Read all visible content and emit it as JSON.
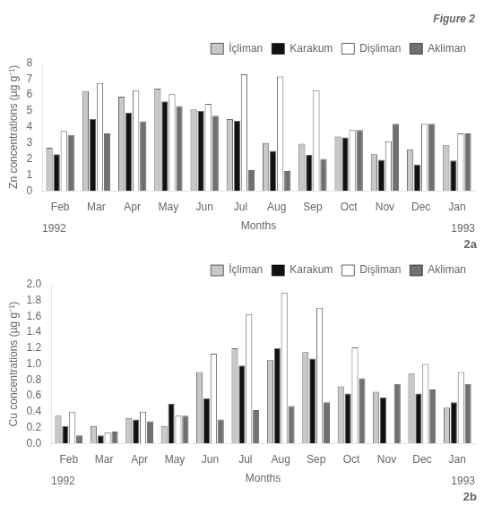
{
  "chart_data": [
    {
      "type": "bar",
      "title": "Figure 2",
      "categories": [
        "Feb",
        "Mar",
        "Apr",
        "May",
        "Jun",
        "Jul",
        "Aug",
        "Sep",
        "Oct",
        "Nov",
        "Dec",
        "Jan"
      ],
      "series": [
        {
          "name": "İçliman",
          "color": "#c8c8c8",
          "values": [
            2.7,
            6.25,
            5.9,
            6.4,
            5.1,
            4.5,
            3.0,
            2.95,
            3.4,
            2.3,
            2.6,
            2.85
          ]
        },
        {
          "name": "Karakum",
          "color": "#111111",
          "values": [
            2.3,
            4.5,
            4.9,
            5.6,
            5.0,
            4.4,
            2.5,
            2.25,
            3.35,
            1.95,
            1.65,
            1.9
          ]
        },
        {
          "name": "Dişliman",
          "color": "#ffffff",
          "values": [
            3.75,
            6.75,
            6.3,
            6.05,
            5.45,
            7.3,
            7.15,
            6.3,
            3.8,
            3.1,
            4.2,
            3.6
          ]
        },
        {
          "name": "Akliman",
          "color": "#707070",
          "values": [
            3.5,
            3.6,
            4.35,
            5.3,
            4.7,
            1.3,
            1.25,
            2.0,
            3.8,
            4.2,
            4.2,
            3.6
          ]
        }
      ],
      "xlabel": "Months",
      "ylabel": "Zn concentrations (µg g⁻¹)",
      "annotations": [
        "1992",
        "1993",
        "2a"
      ],
      "ylim": [
        0,
        8
      ],
      "yticks": [
        0,
        1,
        2,
        3,
        4,
        5,
        6,
        7,
        8
      ],
      "grid": false,
      "legend": "upper right"
    },
    {
      "type": "bar",
      "categories": [
        "Feb",
        "Mar",
        "Apr",
        "May",
        "Jun",
        "Jul",
        "Aug",
        "Sep",
        "Oct",
        "Nov",
        "Dec",
        "Jan"
      ],
      "series": [
        {
          "name": "İçliman",
          "color": "#c8c8c8",
          "values": [
            0.35,
            0.22,
            0.32,
            0.22,
            0.9,
            1.2,
            1.05,
            1.15,
            0.72,
            0.65,
            0.88,
            0.45
          ]
        },
        {
          "name": "Karakum",
          "color": "#111111",
          "values": [
            0.22,
            0.1,
            0.3,
            0.5,
            0.57,
            0.98,
            1.2,
            1.07,
            0.63,
            0.58,
            0.63,
            0.52
          ]
        },
        {
          "name": "Dişliman",
          "color": "#ffffff",
          "values": [
            0.4,
            0.14,
            0.4,
            0.35,
            1.13,
            1.63,
            1.9,
            1.71,
            1.21,
            0.0,
            1.0,
            0.9
          ]
        },
        {
          "name": "Akliman",
          "color": "#707070",
          "values": [
            0.1,
            0.15,
            0.28,
            0.35,
            0.3,
            0.42,
            0.47,
            0.52,
            0.82,
            0.75,
            0.68,
            0.75
          ]
        }
      ],
      "xlabel": "Months",
      "ylabel": "Cu concentrations (µg g⁻¹)",
      "annotations": [
        "1992",
        "1993",
        "2b"
      ],
      "ylim": [
        0,
        2
      ],
      "yticks": [
        {
          "value": 0,
          "label": "0.0"
        },
        0.2,
        0.4,
        0.6,
        0.8,
        {
          "value": 1,
          "label": "1.0"
        },
        1.2,
        1.4,
        1.6,
        1.8,
        {
          "value": 2,
          "label": "2.0"
        }
      ],
      "grid": false,
      "legend": "upper right"
    }
  ]
}
